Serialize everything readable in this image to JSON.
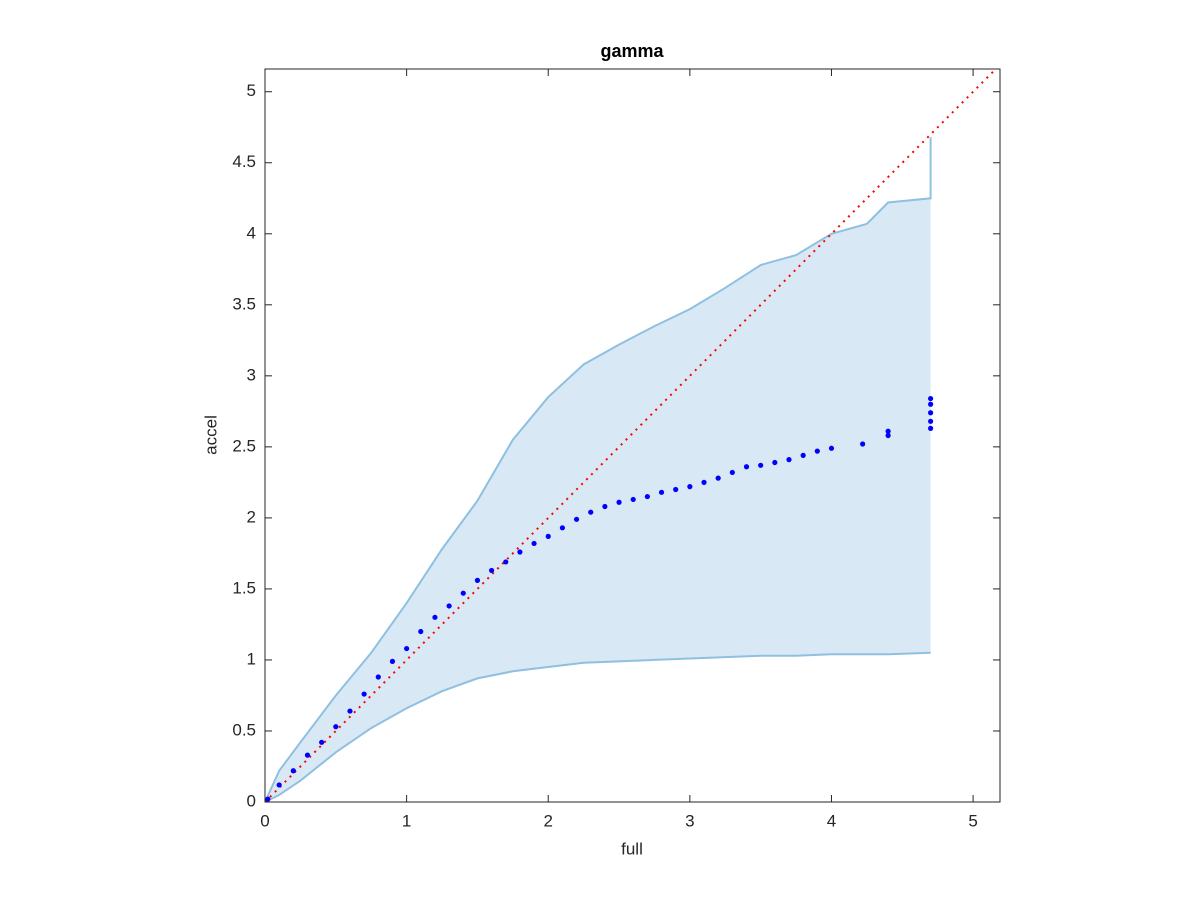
{
  "chart_data": {
    "type": "scatter",
    "title": "gamma",
    "x_label": "full",
    "y_label": "accel",
    "xlim": [
      0,
      5.19
    ],
    "ylim": [
      0,
      5.16
    ],
    "xticks": [
      0,
      1,
      2,
      3,
      4,
      5
    ],
    "yticks": [
      0,
      0.5,
      1,
      1.5,
      2,
      2.5,
      3,
      3.5,
      4,
      4.5,
      5
    ],
    "band": {
      "type": "band",
      "color": "#8fc0e0",
      "fill": "#d9e8f5",
      "x": [
        0,
        0.1,
        0.25,
        0.5,
        0.75,
        1,
        1.25,
        1.5,
        1.75,
        2,
        2.25,
        2.5,
        2.75,
        3,
        3.25,
        3.5,
        3.75,
        4,
        4.25,
        4.4,
        4.7,
        4.7
      ],
      "upper": [
        0,
        0.22,
        0.42,
        0.75,
        1.05,
        1.4,
        1.78,
        2.12,
        2.55,
        2.85,
        3.08,
        3.22,
        3.35,
        3.47,
        3.62,
        3.78,
        3.85,
        4.0,
        4.07,
        4.22,
        4.25,
        4.68
      ],
      "lower": [
        0,
        0.05,
        0.15,
        0.35,
        0.52,
        0.66,
        0.78,
        0.87,
        0.92,
        0.95,
        0.98,
        0.99,
        1.0,
        1.01,
        1.02,
        1.03,
        1.03,
        1.04,
        1.04,
        1.04,
        1.05,
        1.05
      ]
    },
    "reference": {
      "type": "line",
      "color": "#ff0000",
      "dotted": true,
      "x": [
        0,
        5.16
      ],
      "values": [
        0,
        5.16
      ]
    },
    "series": [
      {
        "color": "#0000ff",
        "x": [
          0.02,
          0.1,
          0.2,
          0.3,
          0.4,
          0.5,
          0.6,
          0.7,
          0.8,
          0.9,
          1,
          1.1,
          1.2,
          1.3,
          1.4,
          1.5,
          1.6,
          1.7,
          1.8,
          1.9,
          2,
          2.1,
          2.2,
          2.3,
          2.4,
          2.5,
          2.6,
          2.7,
          2.8,
          2.9,
          3,
          3.1,
          3.2,
          3.3,
          3.4,
          3.5,
          3.6,
          3.7,
          3.8,
          3.9,
          4,
          4.22,
          4.4,
          4.4,
          4.7,
          4.7,
          4.7,
          4.7,
          4.7
        ],
        "values": [
          0.02,
          0.12,
          0.22,
          0.33,
          0.42,
          0.53,
          0.64,
          0.76,
          0.88,
          0.99,
          1.08,
          1.2,
          1.3,
          1.38,
          1.47,
          1.56,
          1.63,
          1.69,
          1.76,
          1.82,
          1.87,
          1.93,
          1.99,
          2.04,
          2.08,
          2.11,
          2.13,
          2.15,
          2.18,
          2.2,
          2.22,
          2.25,
          2.28,
          2.32,
          2.36,
          2.37,
          2.39,
          2.41,
          2.44,
          2.47,
          2.49,
          2.52,
          2.58,
          2.61,
          2.63,
          2.68,
          2.74,
          2.8,
          2.84
        ]
      }
    ]
  }
}
